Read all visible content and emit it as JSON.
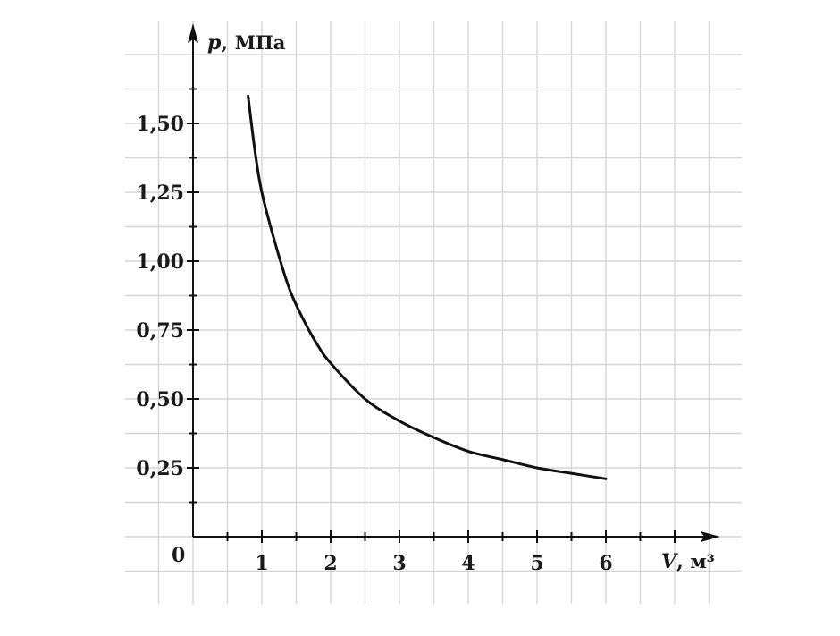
{
  "chart_data": {
    "type": "line",
    "x_axis": {
      "symbol": "V",
      "unit": "м³",
      "ticks": [
        "1",
        "2",
        "3",
        "4",
        "5",
        "6"
      ],
      "tick_values": [
        1,
        2,
        3,
        4,
        5,
        6
      ],
      "range": [
        -0.2,
        7.6
      ]
    },
    "y_axis": {
      "symbol": "p",
      "unit": "МПа",
      "ticks": [
        "0,25",
        "0,50",
        "0,75",
        "1,00",
        "1,25",
        "1,50"
      ],
      "tick_values": [
        0.25,
        0.5,
        0.75,
        1.0,
        1.25,
        1.5
      ],
      "range": [
        -0.25,
        1.875
      ]
    },
    "origin_label": "0",
    "grid": true,
    "series": [
      {
        "values_note": "",
        "x": [
          0.8,
          0.9,
          1.0,
          1.2,
          1.4,
          1.6,
          1.8,
          2.0,
          2.5,
          3.0,
          3.5,
          4.0,
          4.5,
          5.0,
          5.5,
          6.0
        ],
        "y": [
          1.6,
          1.4,
          1.25,
          1.06,
          0.9,
          0.79,
          0.7,
          0.63,
          0.5,
          0.42,
          0.36,
          0.31,
          0.28,
          0.25,
          0.23,
          0.21
        ]
      }
    ],
    "colors": {
      "curve": "#111111",
      "grid": "#d6d6d6",
      "axis": "#111111"
    }
  }
}
